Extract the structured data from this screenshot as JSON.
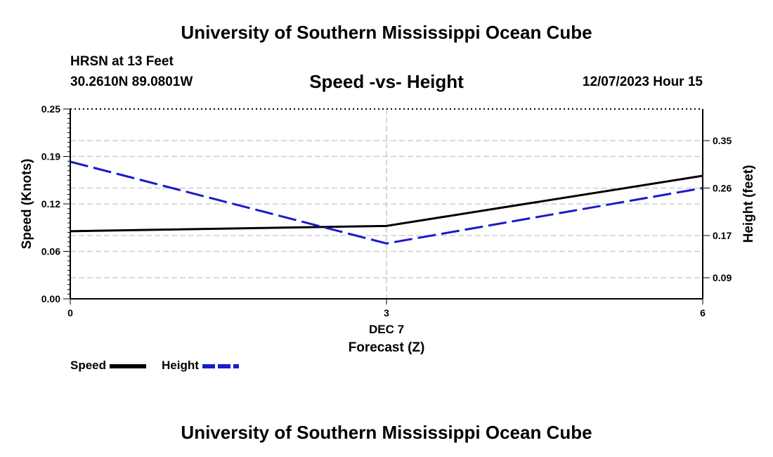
{
  "header": {
    "top_title": "University of Southern Mississippi Ocean Cube",
    "station": "HRSN at 13 Feet",
    "coords": "30.2610N  89.0801W",
    "date_label": "12/07/2023 Hour 15",
    "bottom_title": "University of Southern Mississippi Ocean Cube"
  },
  "chart_data": {
    "type": "line",
    "title": "Speed -vs- Height",
    "x": [
      0,
      3,
      6
    ],
    "x_ticks": [
      "0",
      "3",
      "6"
    ],
    "x_date_label": "DEC 7",
    "xlabel": "Forecast (Z)",
    "xlim": [
      0,
      6
    ],
    "ylabel": "Speed (Knots)",
    "ylim": [
      0,
      0.25
    ],
    "y_ticks": [
      "0.00",
      "0.06",
      "0.12",
      "0.19",
      "0.25"
    ],
    "y_tick_values": [
      0,
      0.0625,
      0.125,
      0.1875,
      0.25
    ],
    "y2label": "Height (feet)",
    "y2lim": [
      0.05,
      0.41
    ],
    "y2_ticks": [
      "0.09",
      "0.17",
      "0.26",
      "0.35"
    ],
    "y2_tick_values": [
      0.09,
      0.17,
      0.26,
      0.35
    ],
    "grid": true,
    "series": [
      {
        "name": "Speed",
        "axis": "left",
        "color": "#000000",
        "style": "solid",
        "values": [
          0.089,
          0.096,
          0.162
        ]
      },
      {
        "name": "Height",
        "axis": "right",
        "color": "#1a1acc",
        "style": "dashed",
        "values": [
          0.31,
          0.155,
          0.26
        ]
      }
    ],
    "legend_placement": "bottom-left"
  }
}
